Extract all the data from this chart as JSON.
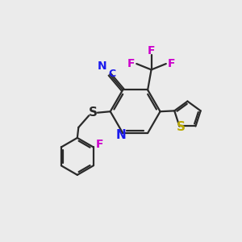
{
  "bg_color": "#ebebeb",
  "bond_color": "#2a2a2a",
  "N_color": "#1a1aee",
  "S_color": "#bbaa00",
  "S_link_color": "#2a2a2a",
  "F_color": "#cc00cc",
  "CN_color": "#1a1aee",
  "fig_size": [
    3.0,
    3.0
  ],
  "dpi": 100,
  "xlim": [
    0,
    10
  ],
  "ylim": [
    0,
    10
  ]
}
